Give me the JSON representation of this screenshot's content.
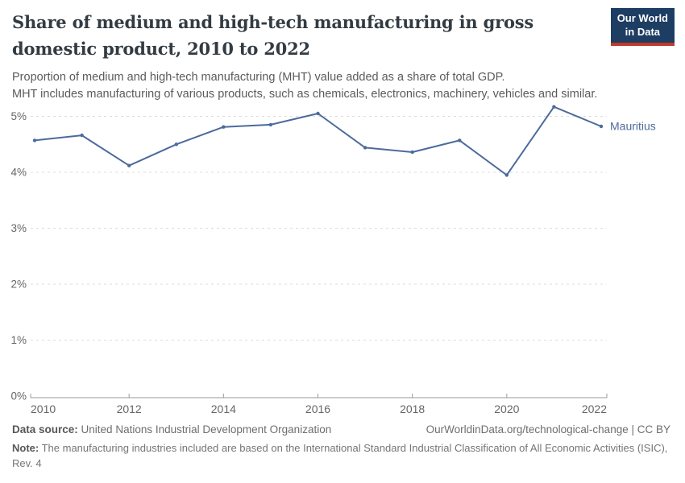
{
  "header": {
    "title": "Share of medium and high-tech manufacturing in gross domestic product, 2010 to 2022",
    "subtitle_line1": "Proportion of medium and high-tech manufacturing (MHT) value added as a share of total GDP.",
    "subtitle_line2": "MHT includes manufacturing of various products, such as chemicals, electronics, machinery, vehicles and similar.",
    "logo": {
      "line1": "Our World",
      "line2": "in Data",
      "bg_color": "#1d3d63",
      "stripe_color": "#c0392b"
    }
  },
  "chart_data": {
    "type": "line",
    "title": "Share of medium and high-tech manufacturing in gross domestic product, 2010 to 2022",
    "x": [
      2010,
      2011,
      2012,
      2013,
      2014,
      2015,
      2016,
      2017,
      2018,
      2019,
      2020,
      2021,
      2022
    ],
    "series": [
      {
        "name": "Mauritius",
        "color": "#4C6A9C",
        "values": [
          4.57,
          4.66,
          4.12,
          4.5,
          4.81,
          4.85,
          5.05,
          4.44,
          4.36,
          4.57,
          3.95,
          5.17,
          4.82
        ]
      }
    ],
    "xlabel": "",
    "ylabel": "",
    "ylim": [
      0,
      5
    ],
    "ytick_values": [
      0,
      1,
      2,
      3,
      4,
      5
    ],
    "ytick_labels": [
      "0%",
      "1%",
      "2%",
      "3%",
      "4%",
      "5%"
    ],
    "xticks": [
      2010,
      2012,
      2014,
      2016,
      2018,
      2020,
      2022
    ],
    "grid": "horizontal-dashed",
    "legend": "end-of-line-label",
    "colors": {
      "grid": "#dcdcdc",
      "axis": "#9a9a9a",
      "tick_text": "#666666"
    }
  },
  "footer": {
    "datasource_label": "Data source:",
    "datasource_value": "United Nations Industrial Development Organization",
    "link": "OurWorldinData.org/technological-change | CC BY",
    "note_label": "Note:",
    "note_value": "The manufacturing industries included are based on the International Standard Industrial Classification of All Economic Activities (ISIC), Rev. 4"
  }
}
